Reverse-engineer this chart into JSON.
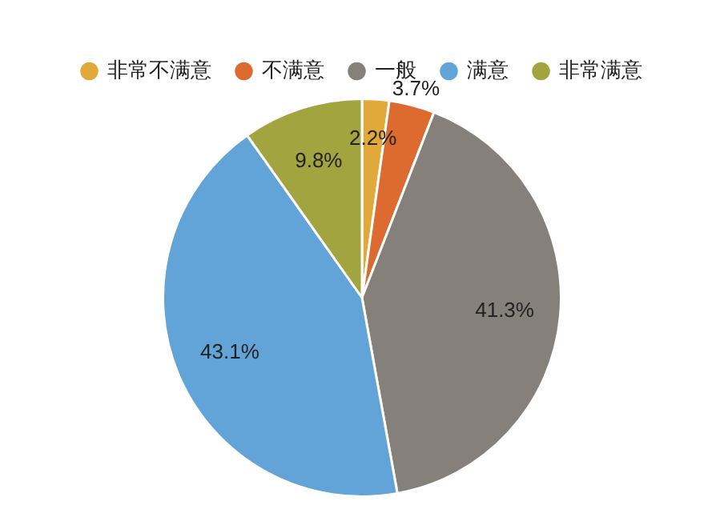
{
  "chart_data": {
    "type": "pie",
    "categories": [
      "非常不满意",
      "不满意",
      "一般",
      "满意",
      "非常满意"
    ],
    "values": [
      2.2,
      3.7,
      41.3,
      43.1,
      9.8
    ],
    "colors": [
      "#e3a83a",
      "#dd6a2f",
      "#85807a",
      "#62a4d8",
      "#a2a440"
    ],
    "value_labels": [
      "2.2%",
      "3.7%",
      "41.3%",
      "43.1%",
      "9.8%"
    ],
    "legend": "top"
  }
}
